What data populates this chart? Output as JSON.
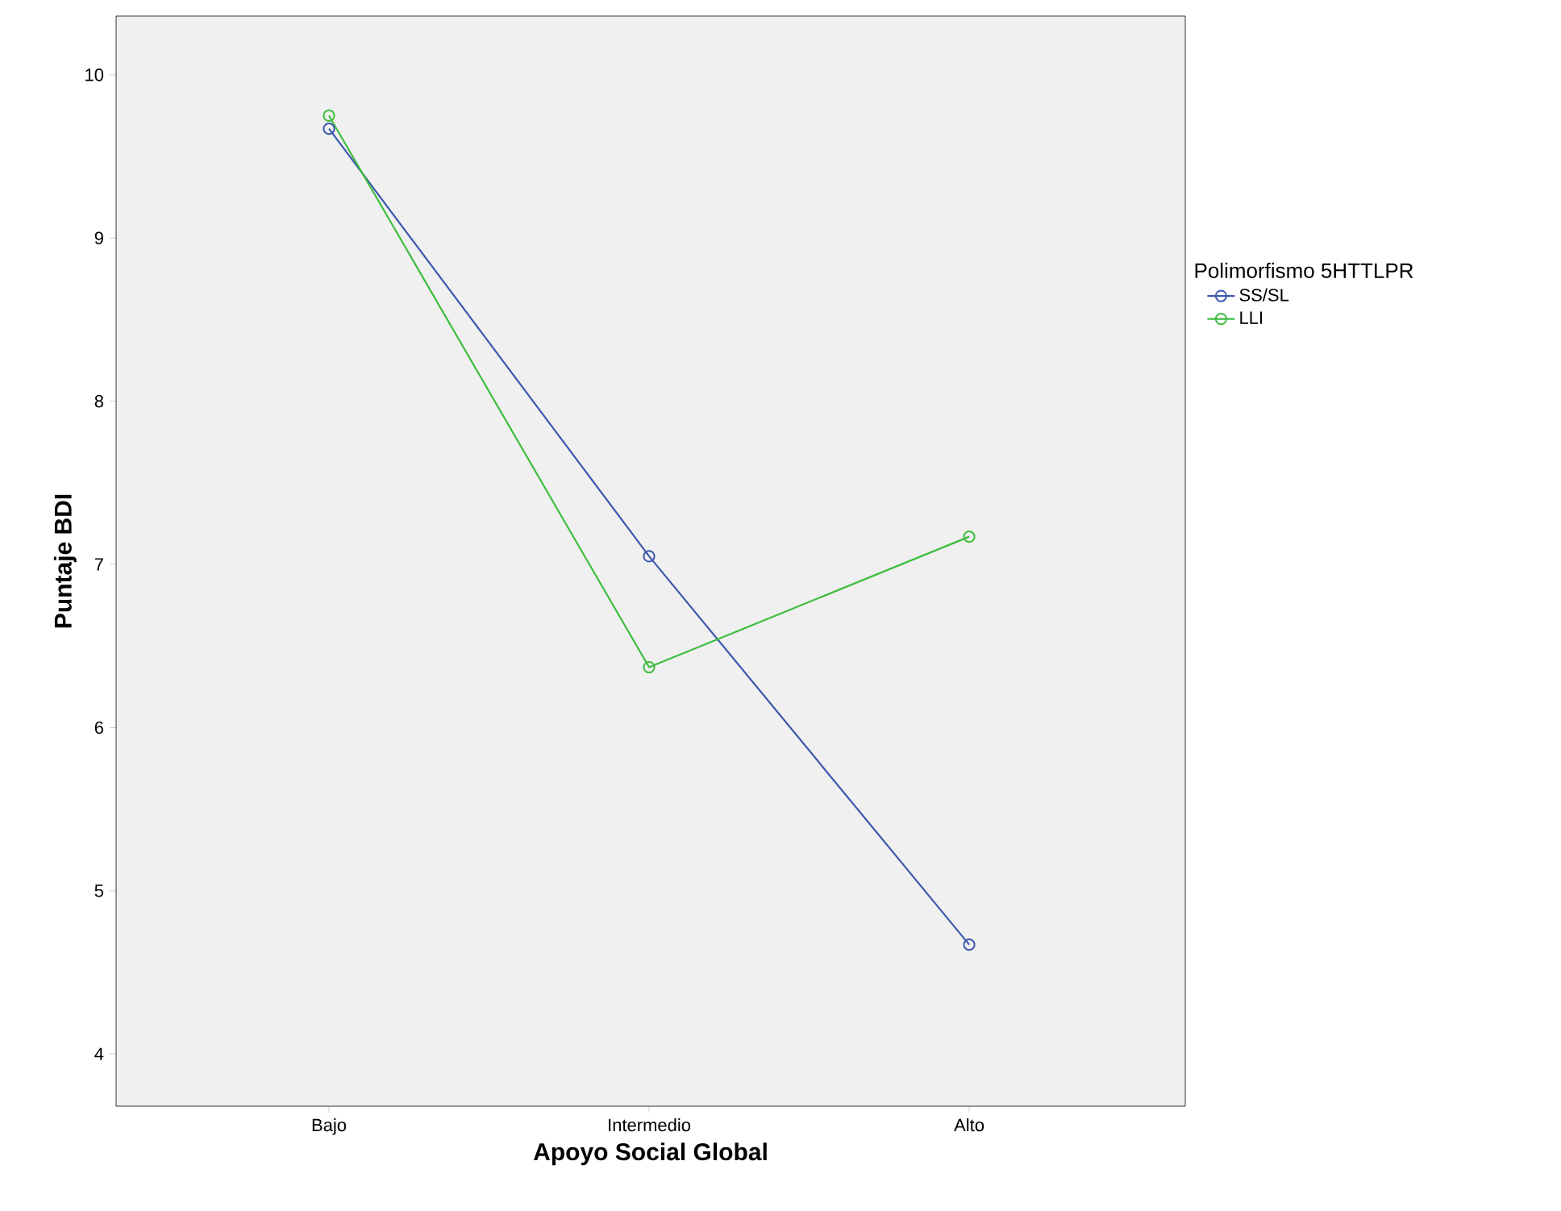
{
  "chart_data": {
    "type": "line",
    "xlabel": "Apoyo Social Global",
    "ylabel": "Puntaje BDI",
    "legend_title": "Polimorfismo 5HTTLPR",
    "categories": [
      "Bajo",
      "Intermedio",
      "Alto"
    ],
    "series": [
      {
        "name": "SS/SL",
        "color": "#3e58ac",
        "values": [
          9.67,
          7.05,
          4.67
        ]
      },
      {
        "name": "LLI",
        "color": "#3ebd3e",
        "values": [
          9.75,
          6.37,
          7.17
        ]
      }
    ],
    "ylim": [
      3.68,
      10.36
    ],
    "yticks": [
      4,
      5,
      6,
      7,
      8,
      9,
      10
    ],
    "grid": false,
    "legend": "right",
    "marker": "circle",
    "line_style": "solid"
  }
}
